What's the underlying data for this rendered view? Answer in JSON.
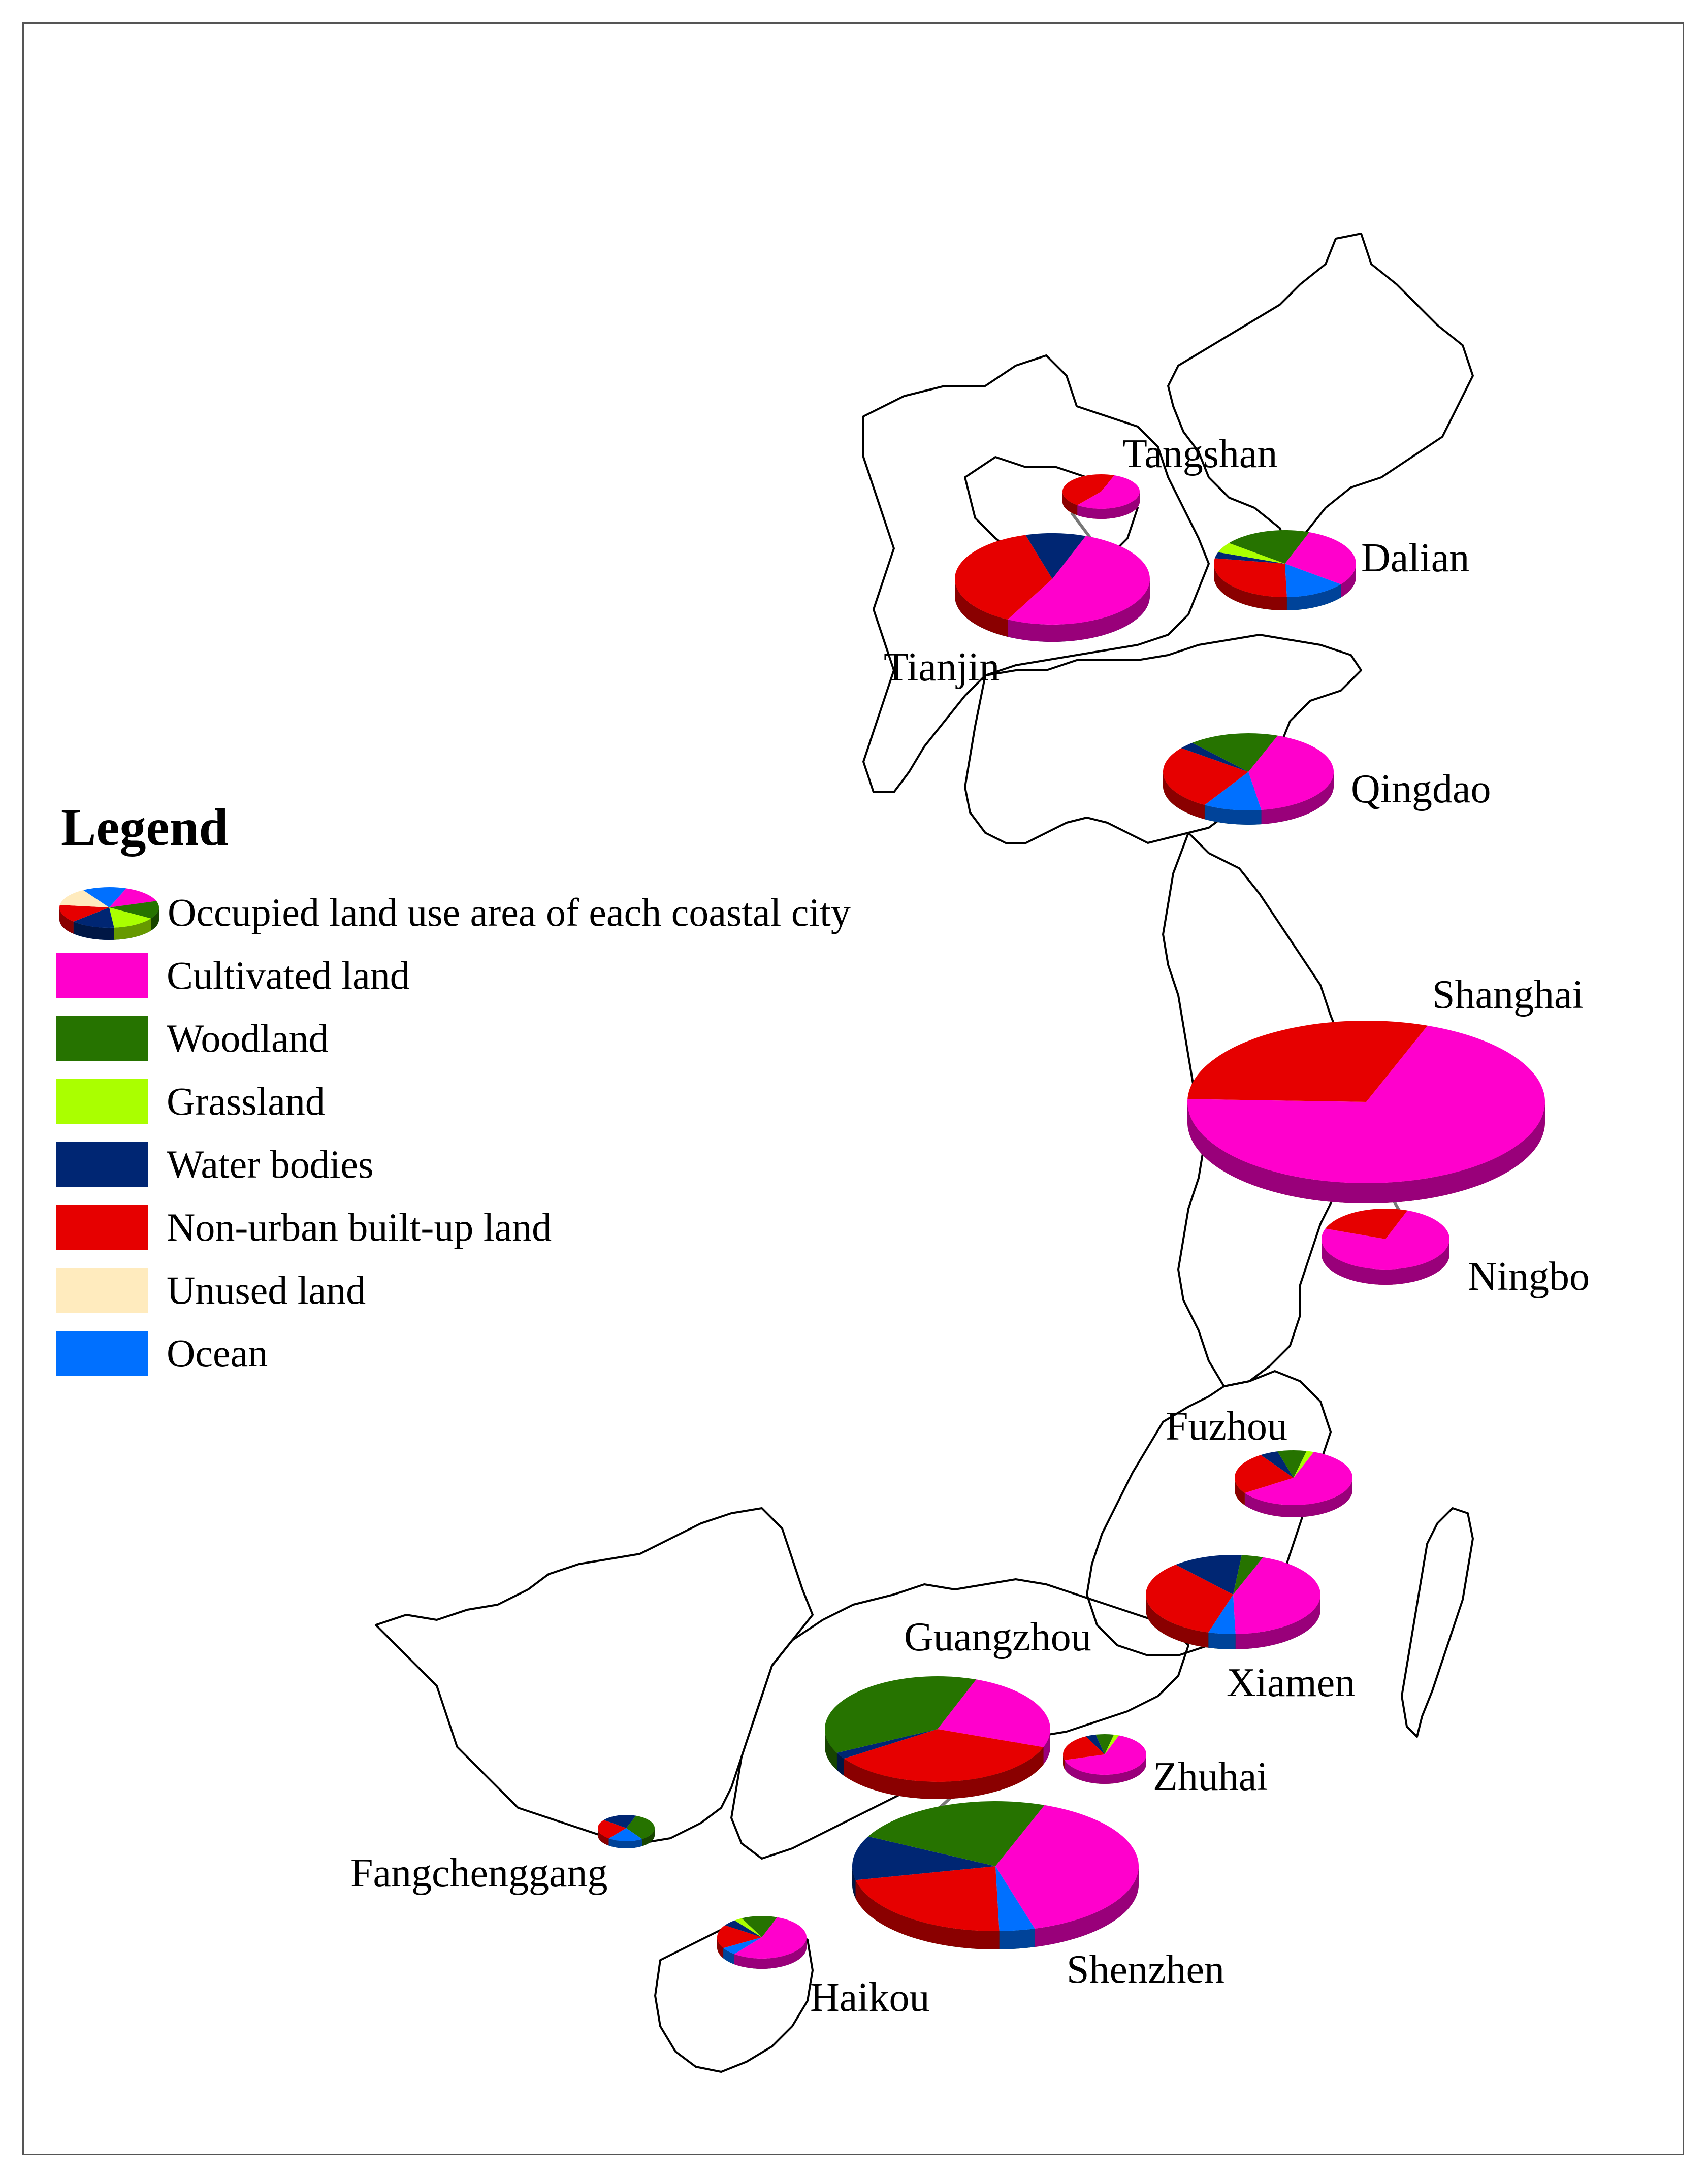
{
  "legend": {
    "title": "Legend",
    "pie_label": "Occupied land use area of each coastal city",
    "items": [
      {
        "label": "Cultivated land",
        "color": "#ff00cc"
      },
      {
        "label": "Woodland",
        "color": "#267300"
      },
      {
        "label": "Grassland",
        "color": "#aaff00"
      },
      {
        "label": "Water bodies",
        "color": "#002673"
      },
      {
        "label": "Non-urban built-up land",
        "color": "#e60000"
      },
      {
        "label": "Unused land",
        "color": "#ffebbe"
      },
      {
        "label": "Ocean",
        "color": "#0070ff"
      }
    ]
  },
  "cities": [
    {
      "name": "Tangshan",
      "slices": [
        {
          "c": 0,
          "v": 55
        },
        {
          "c": 4,
          "v": 45
        }
      ]
    },
    {
      "name": "Dalian",
      "slices": [
        {
          "c": 0,
          "v": 30
        },
        {
          "c": 6,
          "v": 14
        },
        {
          "c": 4,
          "v": 28
        },
        {
          "c": 3,
          "v": 3
        },
        {
          "c": 2,
          "v": 5
        },
        {
          "c": 1,
          "v": 20
        }
      ]
    },
    {
      "name": "Tianjin",
      "slices": [
        {
          "c": 0,
          "v": 52
        },
        {
          "c": 4,
          "v": 38
        },
        {
          "c": 3,
          "v": 10
        }
      ]
    },
    {
      "name": "Qingdao",
      "slices": [
        {
          "c": 0,
          "v": 42
        },
        {
          "c": 6,
          "v": 11
        },
        {
          "c": 4,
          "v": 27
        },
        {
          "c": 3,
          "v": 3
        },
        {
          "c": 1,
          "v": 17
        }
      ]
    },
    {
      "name": "Shanghai",
      "slices": [
        {
          "c": 0,
          "v": 70
        },
        {
          "c": 4,
          "v": 30
        }
      ]
    },
    {
      "name": "Ningbo",
      "slices": [
        {
          "c": 0,
          "v": 75
        },
        {
          "c": 4,
          "v": 25
        }
      ]
    },
    {
      "name": "Fuzhou",
      "slices": [
        {
          "c": 0,
          "v": 60
        },
        {
          "c": 4,
          "v": 25
        },
        {
          "c": 3,
          "v": 5
        },
        {
          "c": 1,
          "v": 8
        },
        {
          "c": 2,
          "v": 2
        }
      ]
    },
    {
      "name": "Xiamen",
      "slices": [
        {
          "c": 0,
          "v": 44
        },
        {
          "c": 6,
          "v": 5
        },
        {
          "c": 4,
          "v": 34
        },
        {
          "c": 3,
          "v": 13
        },
        {
          "c": 1,
          "v": 4
        }
      ]
    },
    {
      "name": "Guangzhou",
      "slices": [
        {
          "c": 0,
          "v": 25
        },
        {
          "c": 4,
          "v": 35
        },
        {
          "c": 3,
          "v": 2
        },
        {
          "c": 1,
          "v": 38
        }
      ]
    },
    {
      "name": "Zhuhai",
      "slices": [
        {
          "c": 0,
          "v": 65
        },
        {
          "c": 4,
          "v": 22
        },
        {
          "c": 3,
          "v": 4
        },
        {
          "c": 1,
          "v": 7
        },
        {
          "c": 2,
          "v": 2
        }
      ]
    },
    {
      "name": "Fangchenggang",
      "slices": [
        {
          "c": 1,
          "v": 35
        },
        {
          "c": 6,
          "v": 20
        },
        {
          "c": 4,
          "v": 25
        },
        {
          "c": 3,
          "v": 20
        }
      ]
    },
    {
      "name": "Shenzhen",
      "slices": [
        {
          "c": 0,
          "v": 40
        },
        {
          "c": 6,
          "v": 4
        },
        {
          "c": 4,
          "v": 22
        },
        {
          "c": 3,
          "v": 11
        },
        {
          "c": 1,
          "v": 23
        }
      ]
    },
    {
      "name": "Haikou",
      "slices": [
        {
          "c": 0,
          "v": 55
        },
        {
          "c": 6,
          "v": 6
        },
        {
          "c": 4,
          "v": 18
        },
        {
          "c": 3,
          "v": 5
        },
        {
          "c": 2,
          "v": 3
        },
        {
          "c": 1,
          "v": 13
        }
      ]
    }
  ]
}
